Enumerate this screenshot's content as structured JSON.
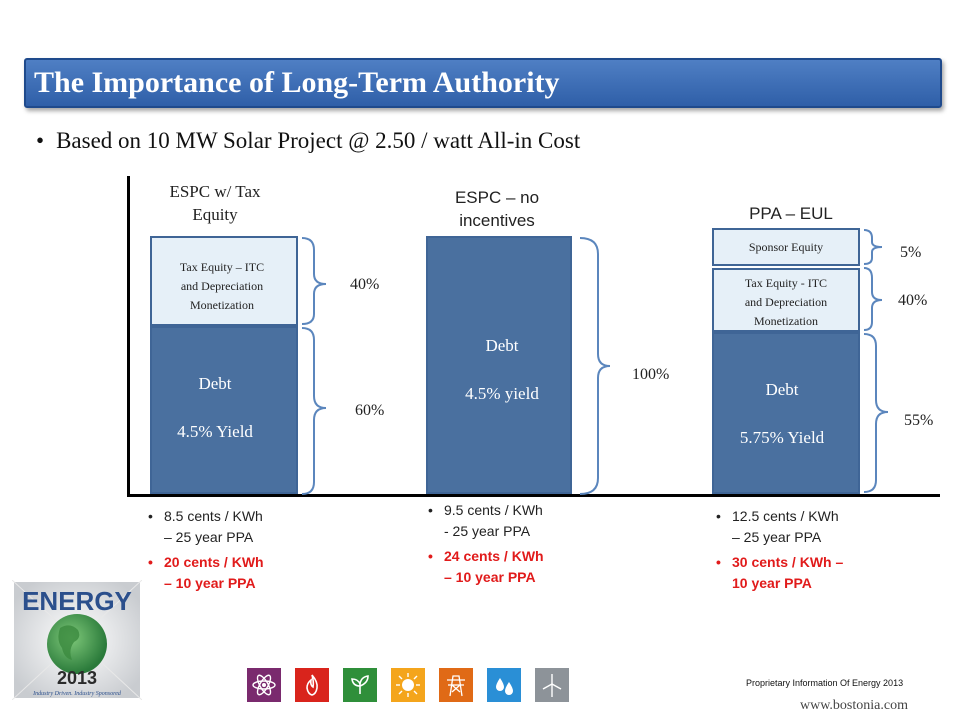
{
  "title": "The Importance of Long-Term Authority",
  "subtitle": "Based on 10 MW Solar Project @ 2.50 / watt All-in Cost",
  "columns": [
    {
      "header_line1": "ESPC w/ Tax",
      "header_line2": "Equity",
      "upper_label": [
        "Tax Equity – ITC",
        "and Depreciation",
        "Monetization"
      ],
      "debt_label": "Debt",
      "debt_yield": "4.5% Yield",
      "pct_upper": "40%",
      "pct_lower": "60%",
      "bullets": [
        {
          "lines": [
            "8.5 cents / KWh",
            "– 25 year PPA"
          ],
          "red": false
        },
        {
          "lines": [
            "20 cents / KWh",
            "– 10 year PPA"
          ],
          "red": true
        }
      ]
    },
    {
      "header_line1": "ESPC – no",
      "header_line2": "incentives",
      "debt_label": "Debt",
      "debt_yield": "4.5% yield",
      "pct_total": "100%",
      "bullets": [
        {
          "lines": [
            "9.5 cents / KWh",
            "- 25 year PPA"
          ],
          "red": false
        },
        {
          "lines": [
            "24 cents / KWh",
            "– 10 year PPA"
          ],
          "red": true
        }
      ]
    },
    {
      "header_line1": "PPA – EUL",
      "top_label": "Sponsor Equity",
      "middle_label": [
        "Tax Equity - ITC",
        "and Depreciation",
        "Monetization"
      ],
      "debt_label": "Debt",
      "debt_yield": "5.75% Yield",
      "pct_top": "5%",
      "pct_middle": "40%",
      "pct_lower": "55%",
      "bullets": [
        {
          "lines": [
            "12.5 cents / KWh",
            "– 25 year PPA"
          ],
          "red": false
        },
        {
          "lines": [
            "30 cents / KWh –",
            "10 year PPA"
          ],
          "red": true
        }
      ]
    }
  ],
  "footer": {
    "logo_text": "ENERGY",
    "logo_year": "2013",
    "logo_tagline": "Industry Driven. Industry Sponsored",
    "proprietary": "Proprietary Information Of Energy 2013",
    "website": "www.bostonia.com",
    "icons": [
      {
        "name": "atom-icon",
        "color": "#7a2a6e"
      },
      {
        "name": "flame-icon",
        "color": "#d9241c"
      },
      {
        "name": "leaf-icon",
        "color": "#2f8f3a"
      },
      {
        "name": "sun-icon",
        "color": "#f4a51c"
      },
      {
        "name": "transmission-tower-icon",
        "color": "#e06a16"
      },
      {
        "name": "water-drops-icon",
        "color": "#2a8fd6"
      },
      {
        "name": "wind-turbine-icon",
        "color": "#8d9399"
      }
    ]
  }
}
